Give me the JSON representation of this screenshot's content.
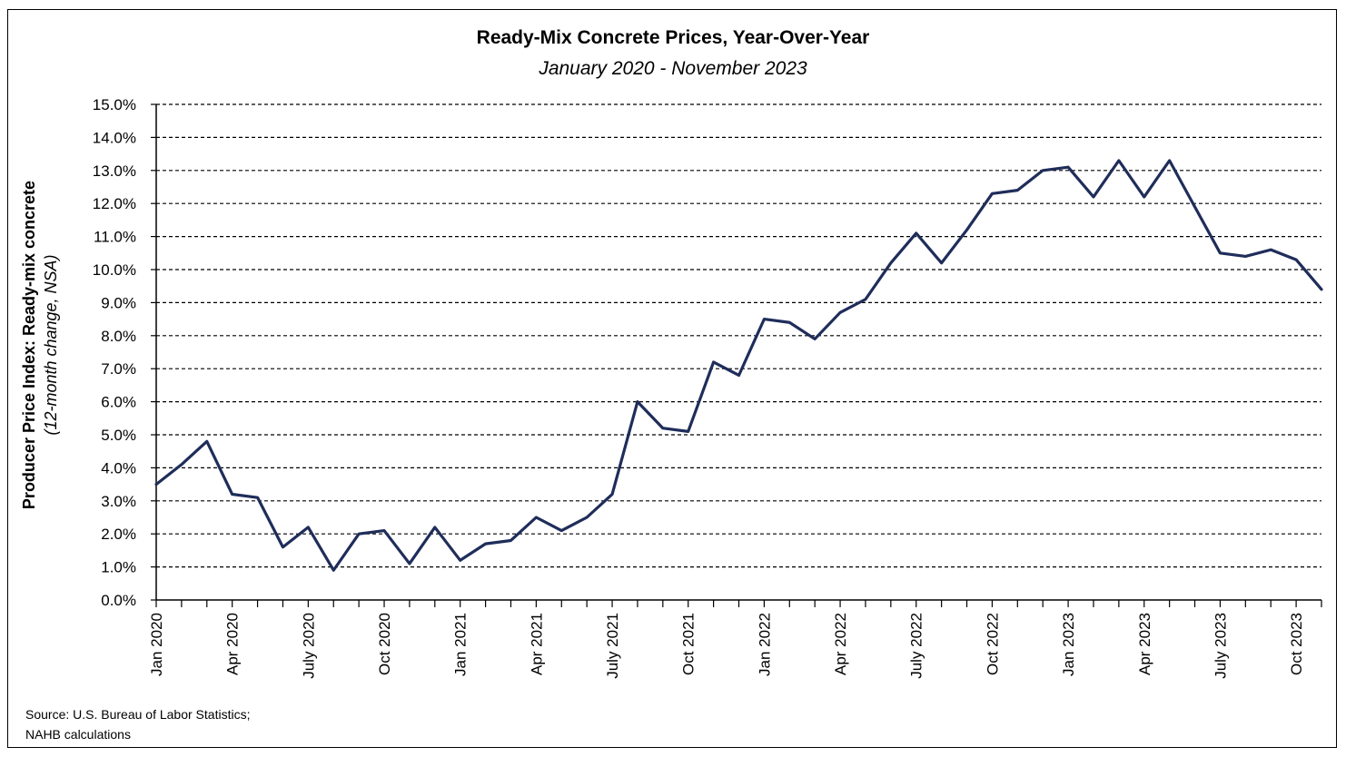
{
  "chart_data": {
    "type": "line",
    "title": "Ready-Mix Concrete Prices, Year-Over-Year",
    "subtitle": "January 2020 - November 2023",
    "ylabel_main": "Producer Price Index: Ready-mix concrete",
    "ylabel_sub": "(12-month change, NSA)",
    "source_line1": "Source: U.S. Bureau of Labor Statistics;",
    "source_line2": "NAHB calculations",
    "ylim": [
      0,
      15
    ],
    "y_ticks": [
      "0.0%",
      "1.0%",
      "2.0%",
      "3.0%",
      "4.0%",
      "5.0%",
      "6.0%",
      "7.0%",
      "8.0%",
      "9.0%",
      "10.0%",
      "11.0%",
      "12.0%",
      "13.0%",
      "14.0%",
      "15.0%"
    ],
    "x_tick_labels": [
      {
        "index": 0,
        "label": "Jan 2020"
      },
      {
        "index": 3,
        "label": "Apr 2020"
      },
      {
        "index": 6,
        "label": "July 2020"
      },
      {
        "index": 9,
        "label": "Oct 2020"
      },
      {
        "index": 12,
        "label": "Jan 2021"
      },
      {
        "index": 15,
        "label": "Apr 2021"
      },
      {
        "index": 18,
        "label": "July 2021"
      },
      {
        "index": 21,
        "label": "Oct 2021"
      },
      {
        "index": 24,
        "label": "Jan 2022"
      },
      {
        "index": 27,
        "label": "Apr 2022"
      },
      {
        "index": 30,
        "label": "July 2022"
      },
      {
        "index": 33,
        "label": "Oct 2022"
      },
      {
        "index": 36,
        "label": "Jan 2023"
      },
      {
        "index": 39,
        "label": "Apr 2023"
      },
      {
        "index": 42,
        "label": "July 2023"
      },
      {
        "index": 45,
        "label": "Oct 2023"
      }
    ],
    "grid": "horizontal dashed",
    "line_color": "#1f2d5a",
    "series": [
      {
        "x": [
          "2020-01",
          "2020-02",
          "2020-03",
          "2020-04",
          "2020-05",
          "2020-06",
          "2020-07",
          "2020-08",
          "2020-09",
          "2020-10",
          "2020-11",
          "2020-12",
          "2021-01",
          "2021-02",
          "2021-03",
          "2021-04",
          "2021-05",
          "2021-06",
          "2021-07",
          "2021-08",
          "2021-09",
          "2021-10",
          "2021-11",
          "2021-12",
          "2022-01",
          "2022-02",
          "2022-03",
          "2022-04",
          "2022-05",
          "2022-06",
          "2022-07",
          "2022-08",
          "2022-09",
          "2022-10",
          "2022-11",
          "2022-12",
          "2023-01",
          "2023-02",
          "2023-03",
          "2023-04",
          "2023-05",
          "2023-06",
          "2023-07",
          "2023-08",
          "2023-09",
          "2023-10",
          "2023-11"
        ],
        "values": [
          3.5,
          4.1,
          4.8,
          3.2,
          3.1,
          1.6,
          2.2,
          0.9,
          2.0,
          2.1,
          1.1,
          2.2,
          1.2,
          1.7,
          1.8,
          2.5,
          2.1,
          2.5,
          3.2,
          6.0,
          5.2,
          5.1,
          7.2,
          6.8,
          8.5,
          8.4,
          7.9,
          8.7,
          9.1,
          10.2,
          11.1,
          10.2,
          11.2,
          12.3,
          12.4,
          13.0,
          13.1,
          12.2,
          13.3,
          12.2,
          13.3,
          11.9,
          10.5,
          10.4,
          10.6,
          10.3,
          9.4
        ]
      }
    ]
  }
}
